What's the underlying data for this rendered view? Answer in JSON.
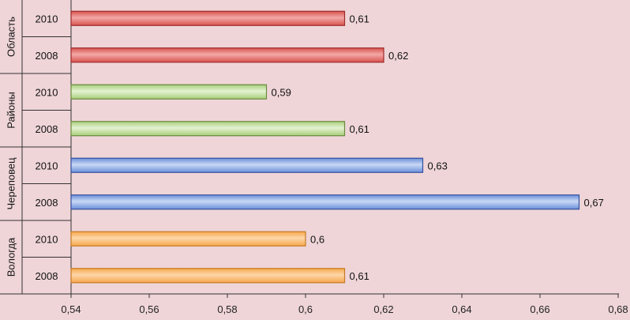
{
  "chart_data": {
    "type": "bar",
    "orientation": "horizontal",
    "title": "",
    "xlabel": "",
    "ylabel": "",
    "xlim": [
      0.54,
      0.68
    ],
    "xticks": [
      "0,54",
      "0,56",
      "0,58",
      "0,6",
      "0,62",
      "0,64",
      "0,66",
      "0,68"
    ],
    "xtick_values": [
      0.54,
      0.56,
      0.58,
      0.6,
      0.62,
      0.64,
      0.66,
      0.68
    ],
    "groups": [
      {
        "name": "Область",
        "color": "#d9534f",
        "color_light": "#f2a8a6",
        "color_dark": "#9c2a28",
        "bars": [
          {
            "category": "2010",
            "value": 0.61,
            "label": "0,61"
          },
          {
            "category": "2008",
            "value": 0.62,
            "label": "0,62"
          }
        ]
      },
      {
        "name": "Районы",
        "color": "#a8cf7a",
        "color_light": "#e4f2d2",
        "color_dark": "#6b8a3e",
        "bars": [
          {
            "category": "2010",
            "value": 0.59,
            "label": "0,59"
          },
          {
            "category": "2008",
            "value": 0.61,
            "label": "0,61"
          }
        ]
      },
      {
        "name": "Череповец",
        "color": "#6b8fd9",
        "color_light": "#c9d8f5",
        "color_dark": "#34509e",
        "bars": [
          {
            "category": "2010",
            "value": 0.63,
            "label": "0,63"
          },
          {
            "category": "2008",
            "value": 0.67,
            "label": "0,67"
          }
        ]
      },
      {
        "name": "Вологда",
        "color": "#f7a84d",
        "color_light": "#fcd6a8",
        "color_dark": "#c67a22",
        "bars": [
          {
            "category": "2010",
            "value": 0.6,
            "label": "0,6"
          },
          {
            "category": "2008",
            "value": 0.61,
            "label": "0,61"
          }
        ]
      }
    ]
  }
}
